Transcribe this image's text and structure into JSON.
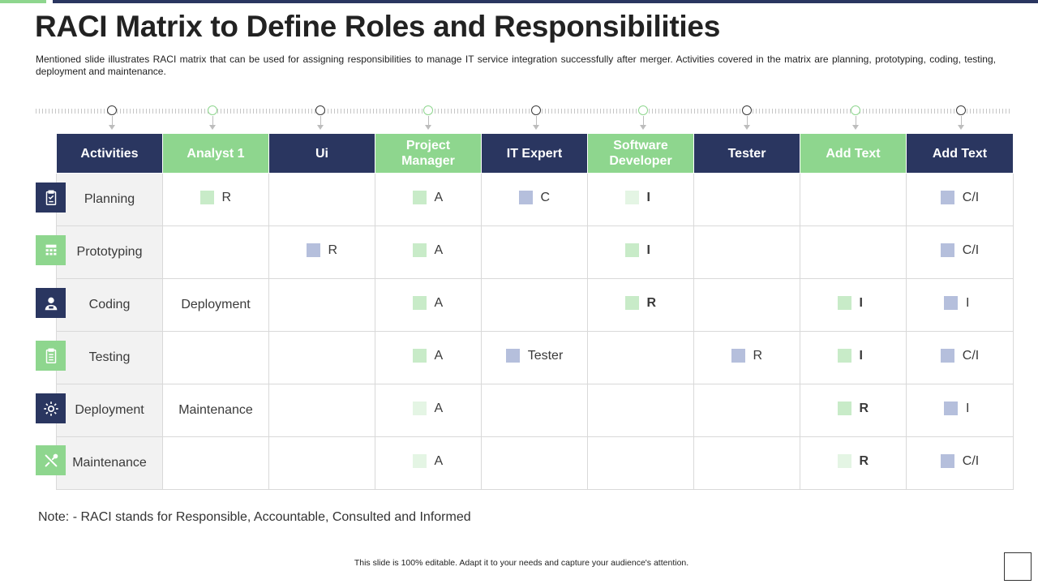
{
  "slide": {
    "title": "RACI Matrix to Define Roles and Responsibilities",
    "subtitle": "Mentioned slide illustrates RACI matrix that can be used for assigning responsibilities to manage IT service integration successfully after merger. Activities covered in the matrix are planning, prototyping, coding, testing, deployment and maintenance.",
    "note": "Note: - RACI stands for Responsible, Accountable, Consulted and Informed",
    "footer": "This slide is 100% editable. Adapt it to your needs and capture your audience's attention."
  },
  "colors": {
    "navy": "#2a3660",
    "green": "#8ed68e",
    "square_green": "#c8ebc8",
    "square_green_light": "#e4f5e4",
    "square_blue": "#b5bfdc",
    "activity_bg": "#f2f2f2"
  },
  "table": {
    "headers": [
      "Activities",
      "Analyst 1",
      "Ui",
      "Project Manager",
      "IT Expert",
      "Software Developer",
      "Tester",
      "Add Text",
      "Add Text"
    ],
    "rows": [
      {
        "activity": "Planning",
        "icon": "clipboard-icon",
        "cells": [
          {
            "text": "R",
            "square": "green"
          },
          {
            "text": "",
            "square": ""
          },
          {
            "text": "A",
            "square": "green"
          },
          {
            "text": "C",
            "square": "blue"
          },
          {
            "text": "I",
            "square": "green-light",
            "bold": true
          },
          {
            "text": "",
            "square": ""
          },
          {
            "text": "",
            "square": ""
          },
          {
            "text": "C/I",
            "square": "blue"
          }
        ]
      },
      {
        "activity": "Prototyping",
        "icon": "calculator-icon",
        "cells": [
          {
            "text": "",
            "square": ""
          },
          {
            "text": "R",
            "square": "blue"
          },
          {
            "text": "A",
            "square": "green"
          },
          {
            "text": "",
            "square": ""
          },
          {
            "text": "I",
            "square": "green",
            "bold": true
          },
          {
            "text": "",
            "square": ""
          },
          {
            "text": "",
            "square": ""
          },
          {
            "text": "C/I",
            "square": "blue"
          }
        ]
      },
      {
        "activity": "Coding",
        "icon": "developer-user-icon",
        "cells": [
          {
            "text": "Deployment",
            "square": ""
          },
          {
            "text": "",
            "square": ""
          },
          {
            "text": "A",
            "square": "green"
          },
          {
            "text": "",
            "square": ""
          },
          {
            "text": "R",
            "square": "green",
            "bold": true
          },
          {
            "text": "",
            "square": ""
          },
          {
            "text": "I",
            "square": "green",
            "bold": true
          },
          {
            "text": "I",
            "square": "blue"
          }
        ]
      },
      {
        "activity": "Testing",
        "icon": "clipboard-list-icon",
        "cells": [
          {
            "text": "",
            "square": ""
          },
          {
            "text": "",
            "square": ""
          },
          {
            "text": "A",
            "square": "green"
          },
          {
            "text": "Tester",
            "square": "blue"
          },
          {
            "text": "",
            "square": ""
          },
          {
            "text": "R",
            "square": "blue"
          },
          {
            "text": "I",
            "square": "green",
            "bold": true
          },
          {
            "text": "C/I",
            "square": "blue"
          }
        ]
      },
      {
        "activity": "Deployment",
        "icon": "gear-icon",
        "cells": [
          {
            "text": "Maintenance",
            "square": ""
          },
          {
            "text": "",
            "square": ""
          },
          {
            "text": "A",
            "square": "green-light"
          },
          {
            "text": "",
            "square": ""
          },
          {
            "text": "",
            "square": ""
          },
          {
            "text": "",
            "square": ""
          },
          {
            "text": "R",
            "square": "green",
            "bold": true
          },
          {
            "text": "I",
            "square": "blue"
          }
        ]
      },
      {
        "activity": "Maintenance",
        "icon": "tools-icon",
        "cells": [
          {
            "text": "",
            "square": ""
          },
          {
            "text": "",
            "square": ""
          },
          {
            "text": "A",
            "square": "green-light"
          },
          {
            "text": "",
            "square": ""
          },
          {
            "text": "",
            "square": ""
          },
          {
            "text": "",
            "square": ""
          },
          {
            "text": "R",
            "square": "green-light",
            "bold": true
          },
          {
            "text": "C/I",
            "square": "blue"
          }
        ]
      }
    ]
  }
}
